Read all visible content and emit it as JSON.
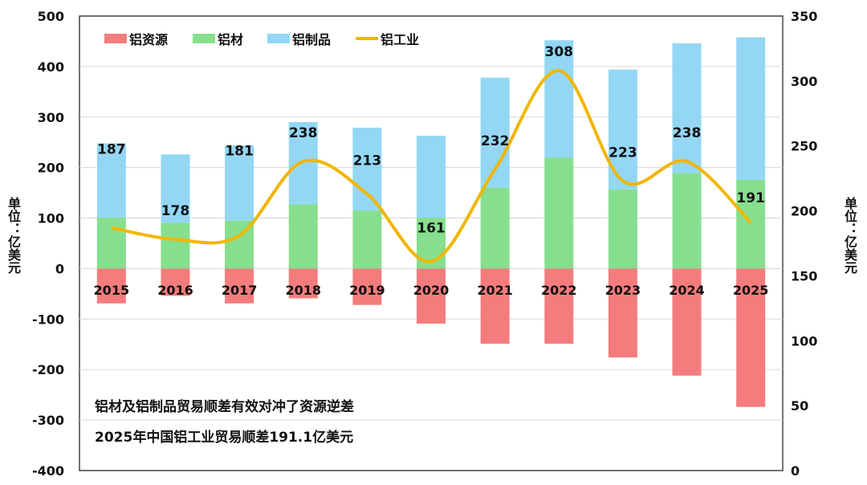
{
  "chart_data": {
    "type": "bar+line",
    "categories": [
      "2015",
      "2016",
      "2017",
      "2018",
      "2019",
      "2020",
      "2021",
      "2022",
      "2023",
      "2024",
      "2025"
    ],
    "series": [
      {
        "name": "铝资源",
        "type": "bar",
        "axis": "left",
        "color": "#f47c7c",
        "values": [
          -69,
          -54,
          -69,
          -59,
          -72,
          -109,
          -149,
          -149,
          -176,
          -212,
          -274
        ]
      },
      {
        "name": "铝材",
        "type": "bar",
        "axis": "left",
        "color": "#86df8e",
        "values": [
          101,
          91,
          95,
          127,
          115,
          101,
          160,
          220,
          157,
          189,
          176
        ]
      },
      {
        "name": "铝制品",
        "type": "bar",
        "axis": "left",
        "color": "#93d7f5",
        "values": [
          147,
          135,
          149,
          163,
          164,
          162,
          218,
          232,
          237,
          257,
          282
        ]
      },
      {
        "name": "铝工业",
        "type": "line",
        "axis": "right",
        "color": "#f2b600",
        "values": [
          187,
          178,
          181,
          238,
          213,
          161,
          232,
          308,
          223,
          238,
          191
        ]
      }
    ],
    "left_axis": {
      "ylim": [
        -400,
        500
      ],
      "ticks": [
        "500",
        "400",
        "300",
        "200",
        "100",
        "0",
        "-100",
        "-200",
        "-300",
        "-400"
      ],
      "label": "单位：亿美元"
    },
    "right_axis": {
      "ylim": [
        0,
        350
      ],
      "ticks": [
        "350",
        "300",
        "250",
        "200",
        "150",
        "100",
        "50",
        "0"
      ],
      "label": "单位：亿美元"
    },
    "legend_position": "top-left",
    "annotations": [
      "铝材及铝制品贸易顺差有效对冲了资源逆差",
      "2025年中国铝工业贸易顺差191.1亿美元"
    ]
  }
}
